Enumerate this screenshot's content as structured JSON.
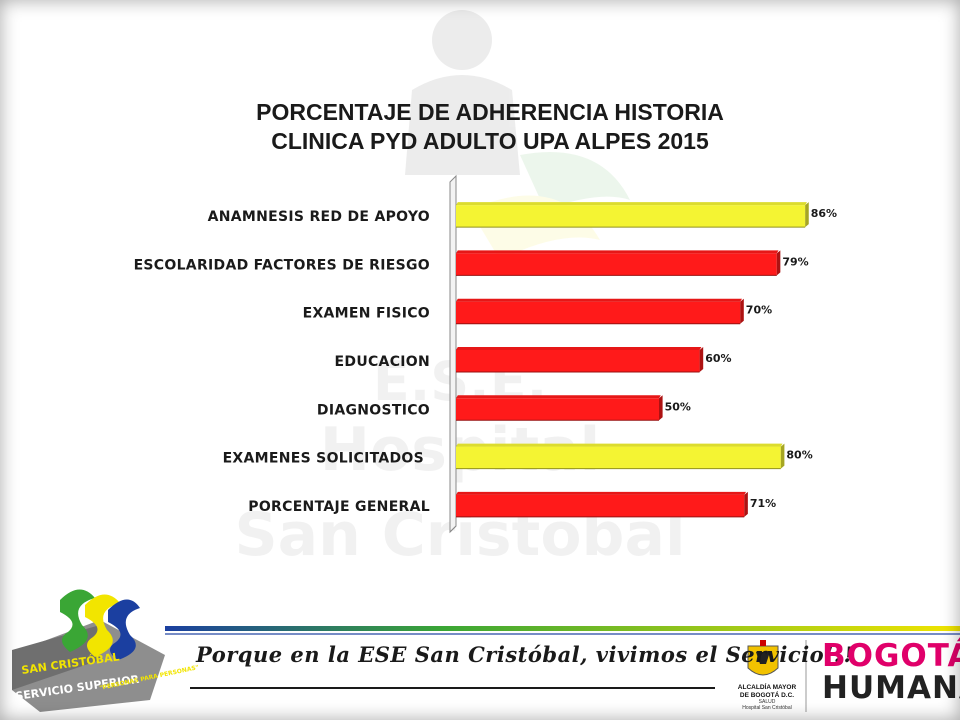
{
  "chart_data": {
    "type": "bar",
    "orientation": "horizontal",
    "title_lines": [
      "PORCENTAJE DE ADHERENCIA HISTORIA",
      "CLINICA PYD ADULTO UPA ALPES 2015"
    ],
    "categories": [
      "ANAMNESIS RED DE APOYO",
      "ESCOLARIDAD FACTORES DE RIESGO",
      "EXAMEN FISICO",
      "EDUCACION",
      "DIAGNOSTICO",
      "EXAMENES SOLICITADOS",
      "PORCENTAJE GENERAL"
    ],
    "values": [
      86,
      79,
      70,
      60,
      50,
      80,
      71
    ],
    "value_labels": [
      "86%",
      "79%",
      "70%",
      "60%",
      "50%",
      "80%",
      "71%"
    ],
    "bar_colors": [
      "#f4f433",
      "#ff1a1a",
      "#ff1a1a",
      "#ff1a1a",
      "#ff1a1a",
      "#f4f433",
      "#ff1a1a"
    ],
    "xlim": [
      0,
      100
    ],
    "grid": false,
    "legend": "none"
  },
  "footer": {
    "slogan": "Porque en la ESE San Cristóbal, vivimos el Servicio!!!",
    "logo_lines": [
      "SAN CRISTÓBAL",
      "SERVICIO SUPERIOR"
    ],
    "logo_tagline": "\"PERSONAS PARA PERSONAS\"",
    "alcaldia_lines": [
      "ALCALDÍA MAYOR",
      "DE BOGOTÁ D.C."
    ],
    "alcaldia_sub": [
      "SALUD",
      "Hospital San Cristóbal"
    ],
    "bogota_line1": "BOGOTÁ",
    "bogota_line2": "HUMANA",
    "colors": {
      "green": "#3aa635",
      "yellow": "#f2e500",
      "blue": "#1b3fa0",
      "magenta": "#e0006a"
    }
  },
  "watermark": {
    "lines": [
      "E.S.E.",
      "Hospital",
      "San Cristobal"
    ]
  }
}
